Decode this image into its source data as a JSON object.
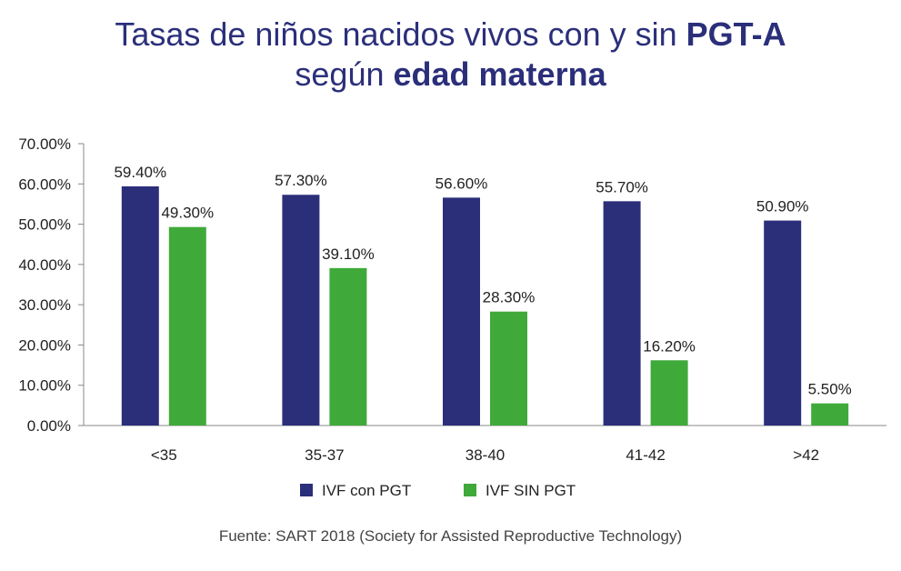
{
  "header": {
    "title_part1": "Tasas de niños nacidos vivos con y sin ",
    "title_bold1": "PGT-A",
    "title_part2": "según ",
    "title_bold2": "edad materna"
  },
  "chart_data": {
    "type": "bar",
    "title": "Tasas de niños nacidos vivos con y sin PGT-A según edad materna",
    "categories": [
      "<35",
      "35-37",
      "38-40",
      "41-42",
      ">42"
    ],
    "series": [
      {
        "name": "IVF con PGT",
        "color": "#2b2f7a",
        "values": [
          59.4,
          57.3,
          56.6,
          55.7,
          50.9
        ],
        "labels": [
          "59.40%",
          "57.30%",
          "56.60%",
          "55.70%",
          "50.90%"
        ]
      },
      {
        "name": "IVF SIN PGT",
        "color": "#3faa3a",
        "values": [
          49.3,
          39.1,
          28.3,
          16.2,
          5.5
        ],
        "labels": [
          "49.30%",
          "39.10%",
          "28.30%",
          "16.20%",
          "5.50%"
        ]
      }
    ],
    "ylim": [
      0,
      70
    ],
    "yticks": [
      0,
      10,
      20,
      30,
      40,
      50,
      60,
      70
    ],
    "ytick_labels": [
      "0.00%",
      "10.00%",
      "20.00%",
      "30.00%",
      "40.00%",
      "50.00%",
      "60.00%",
      "70.00%"
    ],
    "xlabel": "",
    "ylabel": "",
    "legend_position": "bottom"
  },
  "footer": {
    "source": "Fuente: SART 2018 (Society for Assisted Reproductive Technology)"
  }
}
